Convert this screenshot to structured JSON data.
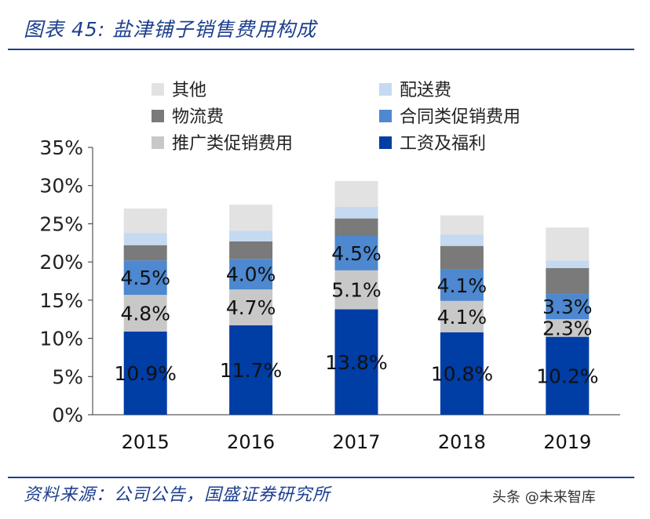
{
  "header": {
    "title": "图表 45:  盐津铺子销售费用构成"
  },
  "footer": {
    "source": "资料来源：公司公告，国盛证券研究所",
    "watermark": "头条 @未来智库"
  },
  "chart_data": {
    "type": "bar",
    "stacked": true,
    "categories": [
      "2015",
      "2016",
      "2017",
      "2018",
      "2019"
    ],
    "ylim": [
      0,
      35
    ],
    "yticks": [
      "0%",
      "5%",
      "10%",
      "15%",
      "20%",
      "25%",
      "30%",
      "35%"
    ],
    "legend_position": "top",
    "series": [
      {
        "name": "工资及福利",
        "color": "#003da5",
        "values": [
          10.9,
          11.7,
          13.8,
          10.8,
          10.2
        ],
        "labels": [
          "10.9%",
          "11.7%",
          "13.8%",
          "10.8%",
          "10.2%"
        ]
      },
      {
        "name": "推广类促销费用",
        "color": "#c8c8c8",
        "values": [
          4.8,
          4.7,
          5.1,
          4.1,
          2.3
        ],
        "labels": [
          "4.8%",
          "4.7%",
          "5.1%",
          "4.1%",
          "2.3%"
        ]
      },
      {
        "name": "合同类促销费用",
        "color": "#4d88d0",
        "values": [
          4.5,
          4.0,
          4.5,
          4.1,
          3.3
        ],
        "labels": [
          "4.5%",
          "4.0%",
          "4.5%",
          "4.1%",
          "3.3%"
        ]
      },
      {
        "name": "物流费",
        "color": "#7a7a7a",
        "values": [
          2.0,
          2.3,
          2.3,
          3.1,
          3.4
        ]
      },
      {
        "name": "配送费",
        "color": "#c5d9f1",
        "values": [
          1.6,
          1.4,
          1.5,
          1.5,
          1.0
        ]
      },
      {
        "name": "其他",
        "color": "#e2e2e2",
        "values": [
          3.2,
          3.4,
          3.4,
          2.5,
          4.3
        ]
      }
    ]
  }
}
